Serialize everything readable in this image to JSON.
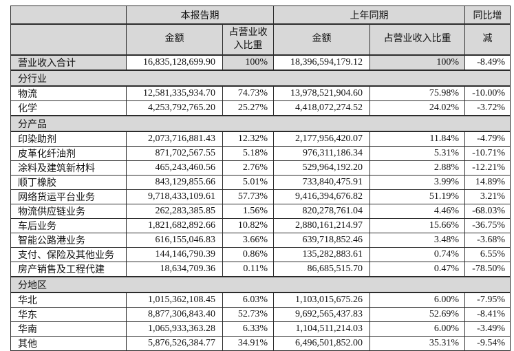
{
  "colors": {
    "header_bg": "#d8d8d8",
    "cell_bg": "#ffffff",
    "border": "#2b2b2b",
    "text": "#111111"
  },
  "table": {
    "header": {
      "current_period": "本报告期",
      "prior_period": "上年同期",
      "yoy_line1": "同比增",
      "yoy_line2": "减",
      "amount_label": "金额",
      "ratio_label": "占营业收入比重"
    },
    "rows": [
      {
        "type": "data",
        "shaded": true,
        "label": "营业收入合计",
        "cur_amount": "16,835,128,699.90",
        "cur_ratio": "100%",
        "prior_amount": "18,396,594,179.12",
        "prior_ratio": "100%",
        "yoy": "-8.49%"
      },
      {
        "type": "section",
        "label": "分行业"
      },
      {
        "type": "data",
        "label": "物流",
        "cur_amount": "12,581,335,934.70",
        "cur_ratio": "74.73%",
        "prior_amount": "13,978,521,904.60",
        "prior_ratio": "75.98%",
        "yoy": "-10.00%"
      },
      {
        "type": "data",
        "label": "化学",
        "cur_amount": "4,253,792,765.20",
        "cur_ratio": "25.27%",
        "prior_amount": "4,418,072,274.52",
        "prior_ratio": "24.02%",
        "yoy": "-3.72%"
      },
      {
        "type": "section",
        "label": "分产品"
      },
      {
        "type": "data",
        "label": "印染助剂",
        "cur_amount": "2,073,716,881.43",
        "cur_ratio": "12.32%",
        "prior_amount": "2,177,956,420.07",
        "prior_ratio": "11.84%",
        "yoy": "-4.79%"
      },
      {
        "type": "data",
        "label": "皮革化纤油剂",
        "cur_amount": "871,702,567.55",
        "cur_ratio": "5.18%",
        "prior_amount": "976,311,186.34",
        "prior_ratio": "5.31%",
        "yoy": "-10.71%"
      },
      {
        "type": "data",
        "label": "涂料及建筑新材料",
        "cur_amount": "465,243,460.56",
        "cur_ratio": "2.76%",
        "prior_amount": "529,964,192.20",
        "prior_ratio": "2.88%",
        "yoy": "-12.21%"
      },
      {
        "type": "data",
        "label": "顺丁橡胶",
        "cur_amount": "843,129,855.66",
        "cur_ratio": "5.01%",
        "prior_amount": "733,840,475.91",
        "prior_ratio": "3.99%",
        "yoy": "14.89%"
      },
      {
        "type": "data",
        "label": "网络货运平台业务",
        "cur_amount": "9,718,433,109.61",
        "cur_ratio": "57.73%",
        "prior_amount": "9,416,394,676.82",
        "prior_ratio": "51.19%",
        "yoy": "3.21%"
      },
      {
        "type": "data",
        "label": "物流供应链业务",
        "cur_amount": "262,283,385.85",
        "cur_ratio": "1.56%",
        "prior_amount": "820,278,761.04",
        "prior_ratio": "4.46%",
        "yoy": "-68.03%"
      },
      {
        "type": "data",
        "label": "车后业务",
        "cur_amount": "1,821,682,892.66",
        "cur_ratio": "10.82%",
        "prior_amount": "2,880,161,214.97",
        "prior_ratio": "15.66%",
        "yoy": "-36.75%"
      },
      {
        "type": "data",
        "label": "智能公路港业务",
        "cur_amount": "616,155,046.83",
        "cur_ratio": "3.66%",
        "prior_amount": "639,718,852.46",
        "prior_ratio": "3.48%",
        "yoy": "-3.68%"
      },
      {
        "type": "data",
        "label": "支付、保险及其他业务",
        "cur_amount": "144,146,790.39",
        "cur_ratio": "0.86%",
        "prior_amount": "135,282,883.61",
        "prior_ratio": "0.74%",
        "yoy": "6.55%"
      },
      {
        "type": "data",
        "label": "房产销售及工程代建",
        "cur_amount": "18,634,709.36",
        "cur_ratio": "0.11%",
        "prior_amount": "86,685,515.70",
        "prior_ratio": "0.47%",
        "yoy": "-78.50%"
      },
      {
        "type": "section",
        "label": "分地区"
      },
      {
        "type": "data",
        "label": "华北",
        "cur_amount": "1,015,362,108.45",
        "cur_ratio": "6.03%",
        "prior_amount": "1,103,015,675.26",
        "prior_ratio": "6.00%",
        "yoy": "-7.95%"
      },
      {
        "type": "data",
        "label": "华东",
        "cur_amount": "8,877,306,843.40",
        "cur_ratio": "52.73%",
        "prior_amount": "9,692,565,437.83",
        "prior_ratio": "52.69%",
        "yoy": "-8.41%"
      },
      {
        "type": "data",
        "label": "华南",
        "cur_amount": "1,065,933,363.28",
        "cur_ratio": "6.33%",
        "prior_amount": "1,104,511,214.03",
        "prior_ratio": "6.00%",
        "yoy": "-3.49%"
      },
      {
        "type": "data",
        "label": "其他",
        "cur_amount": "5,876,526,384.77",
        "cur_ratio": "34.91%",
        "prior_amount": "6,496,501,852.00",
        "prior_ratio": "35.31%",
        "yoy": "-9.54%"
      }
    ]
  }
}
